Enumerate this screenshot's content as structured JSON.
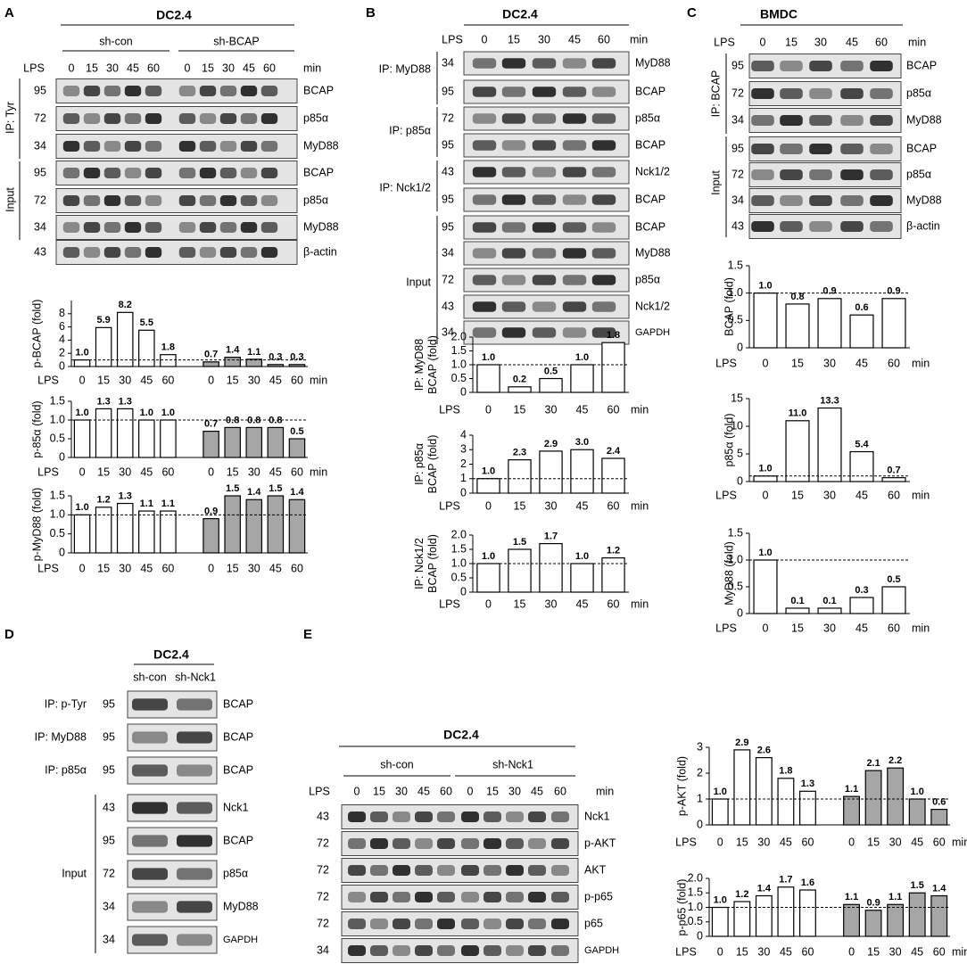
{
  "panels": [
    {
      "letter": "A",
      "cell_line": "DC2.4",
      "groups": [
        "sh-con",
        "sh-BCAP"
      ],
      "treatment": "LPS",
      "times": [
        "0",
        "15",
        "30",
        "45",
        "60",
        "0",
        "15",
        "30",
        "45",
        "60"
      ],
      "unit": "min",
      "ip_labels": [
        "IP: Tyr",
        "Input"
      ],
      "rows": [
        {
          "mw": "95",
          "protein": "BCAP"
        },
        {
          "mw": "72",
          "protein": "p85α"
        },
        {
          "mw": "34",
          "protein": "MyD88"
        },
        {
          "mw": "95",
          "protein": "BCAP"
        },
        {
          "mw": "72",
          "protein": "p85α"
        },
        {
          "mw": "34",
          "protein": "MyD88"
        },
        {
          "mw": "43",
          "protein": "β-actin"
        }
      ]
    },
    {
      "letter": "B",
      "cell_line": "DC2.4",
      "groups": [],
      "treatment": "LPS",
      "times": [
        "0",
        "15",
        "30",
        "45",
        "60"
      ],
      "unit": "min",
      "ip_labels": [
        "IP: MyD88",
        "IP: p85α",
        "IP: Nck1/2",
        "Input"
      ],
      "rows": [
        {
          "mw": "34",
          "protein": "MyD88"
        },
        {
          "mw": "95",
          "protein": "BCAP"
        },
        {
          "mw": "72",
          "protein": "p85α"
        },
        {
          "mw": "95",
          "protein": "BCAP"
        },
        {
          "mw": "43",
          "protein": "Nck1/2"
        },
        {
          "mw": "95",
          "protein": "BCAP"
        },
        {
          "mw": "95",
          "protein": "BCAP"
        },
        {
          "mw": "34",
          "protein": "MyD88"
        },
        {
          "mw": "72",
          "protein": "p85α"
        },
        {
          "mw": "43",
          "protein": "Nck1/2"
        },
        {
          "mw": "34",
          "protein": "GAPDH"
        }
      ]
    },
    {
      "letter": "C",
      "cell_line": "BMDC",
      "groups": [],
      "treatment": "LPS",
      "times": [
        "0",
        "15",
        "30",
        "45",
        "60"
      ],
      "unit": "min",
      "ip_labels": [
        "IP: BCAP",
        "Input"
      ],
      "rows": [
        {
          "mw": "95",
          "protein": "BCAP"
        },
        {
          "mw": "72",
          "protein": "p85α"
        },
        {
          "mw": "34",
          "protein": "MyD88"
        },
        {
          "mw": "95",
          "protein": "BCAP"
        },
        {
          "mw": "72",
          "protein": "p85α"
        },
        {
          "mw": "34",
          "protein": "MyD88"
        },
        {
          "mw": "43",
          "protein": "β-actin"
        }
      ]
    },
    {
      "letter": "D",
      "cell_line": "DC2.4",
      "groups": [
        "sh-con",
        "sh-Nck1"
      ],
      "ip_labels": [
        "IP: p-Tyr",
        "IP: MyD88",
        "IP: p85α",
        "Input"
      ],
      "rows": [
        {
          "mw": "95",
          "protein": "BCAP"
        },
        {
          "mw": "95",
          "protein": "BCAP"
        },
        {
          "mw": "95",
          "protein": "BCAP"
        },
        {
          "mw": "43",
          "protein": "Nck1"
        },
        {
          "mw": "95",
          "protein": "BCAP"
        },
        {
          "mw": "72",
          "protein": "p85α"
        },
        {
          "mw": "34",
          "protein": "MyD88"
        },
        {
          "mw": "34",
          "protein": "GAPDH"
        }
      ]
    },
    {
      "letter": "E",
      "cell_line": "DC2.4",
      "groups": [
        "sh-con",
        "sh-Nck1"
      ],
      "treatment": "LPS",
      "times": [
        "0",
        "15",
        "30",
        "45",
        "60",
        "0",
        "15",
        "30",
        "45",
        "60"
      ],
      "unit": "min",
      "ip_labels": [],
      "rows": [
        {
          "mw": "43",
          "protein": "Nck1"
        },
        {
          "mw": "72",
          "protein": "p-AKT"
        },
        {
          "mw": "72",
          "protein": "AKT"
        },
        {
          "mw": "72",
          "protein": "p-p65"
        },
        {
          "mw": "72",
          "protein": "p65"
        },
        {
          "mw": "34",
          "protein": "GAPDH"
        }
      ]
    }
  ],
  "chart_data": [
    {
      "type": "bar",
      "ylabel": "p-BCAP (fold)",
      "xlabel_start": "LPS",
      "xlabel_end": "min",
      "categories": [
        "0",
        "15",
        "30",
        "45",
        "60",
        "0",
        "15",
        "30",
        "45",
        "60"
      ],
      "values": [
        1.0,
        5.9,
        8.2,
        5.5,
        1.8,
        0.7,
        1.4,
        1.1,
        0.3,
        0.3
      ],
      "value_labels": [
        "1.0",
        "5.9",
        "8.2",
        "5.5",
        "1.8",
        "0.7",
        "1.4",
        "1.1",
        "0.3",
        "0.3"
      ],
      "colors": [
        "#ffffff",
        "#ffffff",
        "#ffffff",
        "#ffffff",
        "#ffffff",
        "#a6a6a6",
        "#a6a6a6",
        "#a6a6a6",
        "#a6a6a6",
        "#a6a6a6"
      ],
      "ylim": [
        0,
        10
      ],
      "yticks": [
        0,
        2,
        4,
        6,
        8
      ],
      "reference_line": 1
    },
    {
      "type": "bar",
      "ylabel": "p-85α (fold)",
      "xlabel_start": "LPS",
      "xlabel_end": "min",
      "categories": [
        "0",
        "15",
        "30",
        "45",
        "60",
        "0",
        "15",
        "30",
        "45",
        "60"
      ],
      "values": [
        1.0,
        1.3,
        1.3,
        1.0,
        1.0,
        0.7,
        0.8,
        0.8,
        0.8,
        0.5
      ],
      "value_labels": [
        "1.0",
        "1.3",
        "1.3",
        "1.0",
        "1.0",
        "0.7",
        "0.8",
        "0.8",
        "0.8",
        "0.5"
      ],
      "colors": [
        "#ffffff",
        "#ffffff",
        "#ffffff",
        "#ffffff",
        "#ffffff",
        "#a6a6a6",
        "#a6a6a6",
        "#a6a6a6",
        "#a6a6a6",
        "#a6a6a6"
      ],
      "ylim": [
        0,
        1.5
      ],
      "yticks": [
        0,
        0.5,
        {
          "value": 1,
          "label": "1.0"
        },
        1.5
      ],
      "reference_line": 1
    },
    {
      "type": "bar",
      "ylabel": "p-MyD88 (fold)",
      "xlabel_start": "LPS",
      "categories": [
        "0",
        "15",
        "30",
        "45",
        "60",
        "0",
        "15",
        "30",
        "45",
        "60"
      ],
      "values": [
        1.0,
        1.2,
        1.3,
        1.1,
        1.1,
        0.9,
        1.5,
        1.4,
        1.5,
        1.4
      ],
      "value_labels": [
        "1.0",
        "1.2",
        "1.3",
        "1.1",
        "1.1",
        "0.9",
        "1.5",
        "1.4",
        "1.5",
        "1.4"
      ],
      "colors": [
        "#ffffff",
        "#ffffff",
        "#ffffff",
        "#ffffff",
        "#ffffff",
        "#a6a6a6",
        "#a6a6a6",
        "#a6a6a6",
        "#a6a6a6",
        "#a6a6a6"
      ],
      "ylim": [
        0,
        1.5
      ],
      "yticks": [
        0,
        0.5,
        {
          "value": 1,
          "label": "1.0"
        },
        1.5
      ],
      "reference_line": 1
    },
    {
      "type": "bar",
      "ylabel": [
        "IP: MyD88",
        "BCAP (fold)"
      ],
      "xlabel_start": "LPS",
      "xlabel_end": "min",
      "categories": [
        "0",
        "15",
        "30",
        "45",
        "60"
      ],
      "values": [
        1.0,
        0.2,
        0.5,
        1.0,
        1.8
      ],
      "value_labels": [
        "1.0",
        "0.2",
        "0.5",
        "1.0",
        "1.8"
      ],
      "colors": [
        "#ffffff",
        "#ffffff",
        "#ffffff",
        "#ffffff",
        "#ffffff"
      ],
      "ylim": [
        0,
        2
      ],
      "yticks": [
        0,
        0.5,
        {
          "value": 1,
          "label": "1.0"
        },
        1.5,
        {
          "value": 2,
          "label": "2.0"
        }
      ],
      "reference_line": 1
    },
    {
      "type": "bar",
      "ylabel": [
        "IP: p85α",
        "BCAP (fold)"
      ],
      "xlabel_start": "LPS",
      "xlabel_end": "min",
      "categories": [
        "0",
        "15",
        "30",
        "45",
        "60"
      ],
      "values": [
        1.0,
        2.3,
        2.9,
        3.0,
        2.4
      ],
      "value_labels": [
        "1.0",
        "2.3",
        "2.9",
        "3.0",
        "2.4"
      ],
      "colors": [
        "#ffffff",
        "#ffffff",
        "#ffffff",
        "#ffffff",
        "#ffffff"
      ],
      "ylim": [
        0,
        4
      ],
      "yticks": [
        0,
        1,
        2,
        3,
        4
      ],
      "reference_line": 1
    },
    {
      "type": "bar",
      "ylabel": [
        "IP: Nck1/2",
        "BCAP (fold)"
      ],
      "xlabel_start": "LPS",
      "xlabel_end": "min",
      "categories": [
        "0",
        "15",
        "30",
        "45",
        "60"
      ],
      "values": [
        1.0,
        1.5,
        1.7,
        1.0,
        1.2
      ],
      "value_labels": [
        "1.0",
        "1.5",
        "1.7",
        "1.0",
        "1.2"
      ],
      "colors": [
        "#ffffff",
        "#ffffff",
        "#ffffff",
        "#ffffff",
        "#ffffff"
      ],
      "ylim": [
        0,
        2
      ],
      "yticks": [
        0,
        0.5,
        {
          "value": 1,
          "label": "1.0"
        },
        1.5,
        {
          "value": 2,
          "label": "2.0"
        }
      ],
      "reference_line": 1
    },
    {
      "type": "bar",
      "ylabel": "BCAP (fold)",
      "xlabel_start": "LPS",
      "xlabel_end": "min",
      "categories": [
        "0",
        "15",
        "30",
        "45",
        "60"
      ],
      "values": [
        1.0,
        0.8,
        0.9,
        0.6,
        0.9
      ],
      "value_labels": [
        "1.0",
        "0.8",
        "0.9",
        "0.6",
        "0.9"
      ],
      "colors": [
        "#ffffff",
        "#ffffff",
        "#ffffff",
        "#ffffff",
        "#ffffff"
      ],
      "ylim": [
        0,
        1.5
      ],
      "yticks": [
        0,
        0.5,
        {
          "value": 1,
          "label": "1.0"
        },
        1.5
      ],
      "reference_line": 1
    },
    {
      "type": "bar",
      "ylabel": "p85α (fold)",
      "xlabel_start": "LPS",
      "xlabel_end": "min",
      "categories": [
        "0",
        "15",
        "30",
        "45",
        "60"
      ],
      "values": [
        1.0,
        11.0,
        13.3,
        5.4,
        0.7
      ],
      "value_labels": [
        "1.0",
        "11.0",
        "13.3",
        "5.4",
        "0.7"
      ],
      "colors": [
        "#ffffff",
        "#ffffff",
        "#ffffff",
        "#ffffff",
        "#ffffff"
      ],
      "ylim": [
        0,
        15
      ],
      "yticks": [
        0,
        5,
        10,
        15
      ],
      "reference_line": 1
    },
    {
      "type": "bar",
      "ylabel": "MyD88 (fold)",
      "xlabel_start": "LPS",
      "xlabel_end": "min",
      "categories": [
        "0",
        "15",
        "30",
        "45",
        "60"
      ],
      "values": [
        1.0,
        0.1,
        0.1,
        0.3,
        0.5
      ],
      "value_labels": [
        "1.0",
        "0.1",
        "0.1",
        "0.3",
        "0.5"
      ],
      "colors": [
        "#ffffff",
        "#ffffff",
        "#ffffff",
        "#ffffff",
        "#ffffff"
      ],
      "ylim": [
        0,
        1.5
      ],
      "yticks": [
        0,
        0.5,
        {
          "value": 1,
          "label": "1.0"
        },
        1.5
      ],
      "reference_line": 1
    },
    {
      "type": "bar",
      "ylabel": "p-AKT (fold)",
      "xlabel_start": "LPS",
      "xlabel_end": "min",
      "categories": [
        "0",
        "15",
        "30",
        "45",
        "60",
        "0",
        "15",
        "30",
        "45",
        "60"
      ],
      "values": [
        1.0,
        2.9,
        2.6,
        1.8,
        1.3,
        1.1,
        2.1,
        2.2,
        1.0,
        0.6
      ],
      "value_labels": [
        "1.0",
        "2.9",
        "2.6",
        "1.8",
        "1.3",
        "1.1",
        "2.1",
        "2.2",
        "1.0",
        "0.6"
      ],
      "colors": [
        "#ffffff",
        "#ffffff",
        "#ffffff",
        "#ffffff",
        "#ffffff",
        "#a6a6a6",
        "#a6a6a6",
        "#a6a6a6",
        "#a6a6a6",
        "#a6a6a6"
      ],
      "ylim": [
        0,
        3
      ],
      "yticks": [
        0,
        1,
        2,
        3
      ],
      "reference_line": 1
    },
    {
      "type": "bar",
      "ylabel": "p-p65 (fold)",
      "xlabel_start": "LPS",
      "xlabel_end": "min",
      "categories": [
        "0",
        "15",
        "30",
        "45",
        "60",
        "0",
        "15",
        "30",
        "45",
        "60"
      ],
      "values": [
        1.0,
        1.2,
        1.4,
        1.7,
        1.6,
        1.1,
        0.9,
        1.1,
        1.5,
        1.4
      ],
      "value_labels": [
        "1.0",
        "1.2",
        "1.4",
        "1.7",
        "1.6",
        "1.1",
        "0.9",
        "1.1",
        "1.5",
        "1.4"
      ],
      "colors": [
        "#ffffff",
        "#ffffff",
        "#ffffff",
        "#ffffff",
        "#ffffff",
        "#a6a6a6",
        "#a6a6a6",
        "#a6a6a6",
        "#a6a6a6",
        "#a6a6a6"
      ],
      "ylim": [
        0,
        2
      ],
      "yticks": [
        0,
        0.5,
        {
          "value": 1,
          "label": "1.0"
        },
        1.5,
        {
          "value": 2,
          "label": "2.0"
        }
      ],
      "reference_line": 1
    }
  ]
}
